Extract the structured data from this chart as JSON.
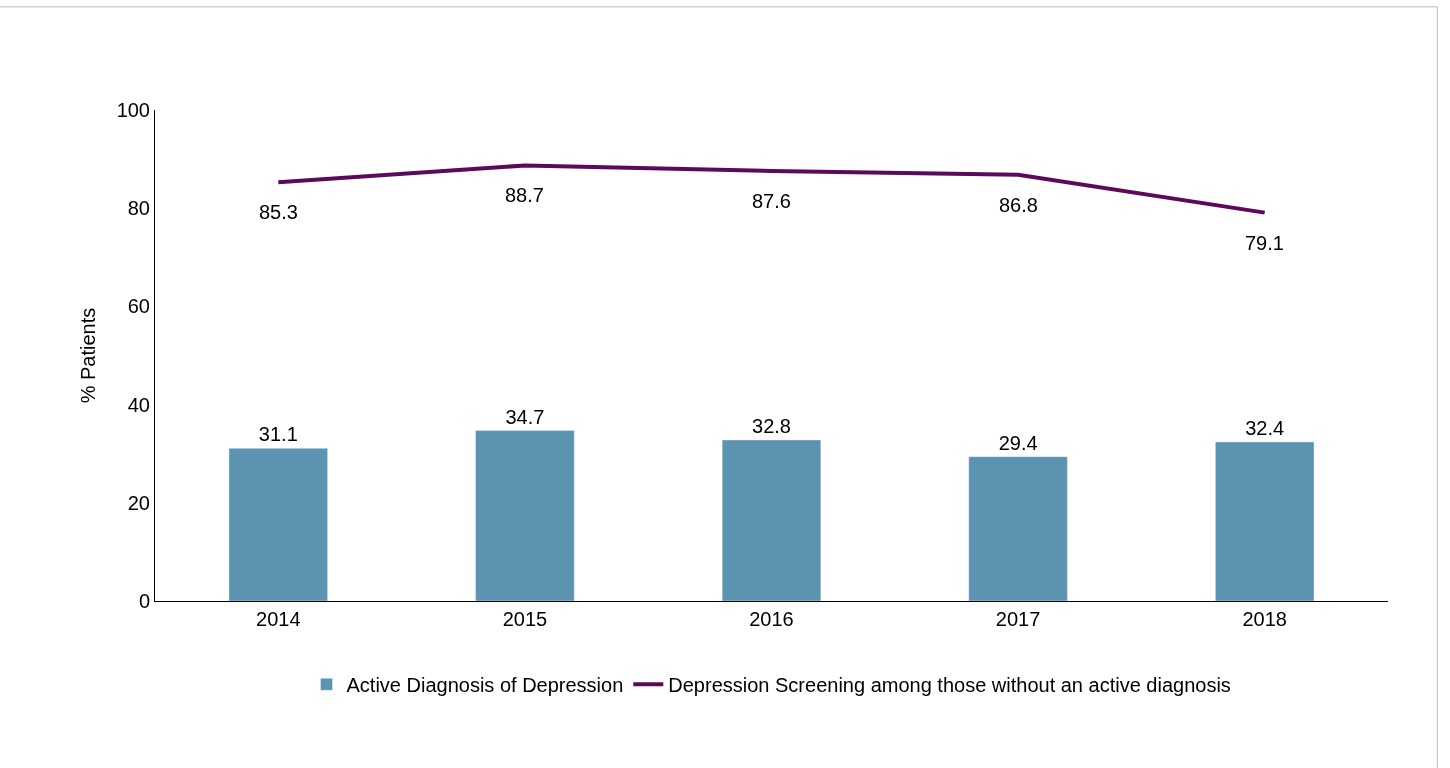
{
  "chart_data": {
    "type": "bar",
    "ylabel": "% Patients",
    "categories": [
      "2014",
      "2015",
      "2016",
      "2017",
      "2018"
    ],
    "series": [
      {
        "name": "Active Diagnosis of Depression",
        "color": "#5b93b0",
        "values": [
          31.1,
          34.7,
          32.8,
          29.4,
          32.4
        ]
      },
      {
        "name": "Depression Screening among those without an active diagnosis",
        "type": "line",
        "color": "#5b0a5b",
        "values": [
          85.3,
          88.7,
          87.6,
          86.8,
          79.1
        ]
      }
    ],
    "ylim": [
      0,
      100
    ],
    "yticks": [
      0,
      20,
      40,
      60,
      80,
      100
    ],
    "legend": "bottom",
    "data_labels": true,
    "marker": "none",
    "line_style": "solid"
  }
}
